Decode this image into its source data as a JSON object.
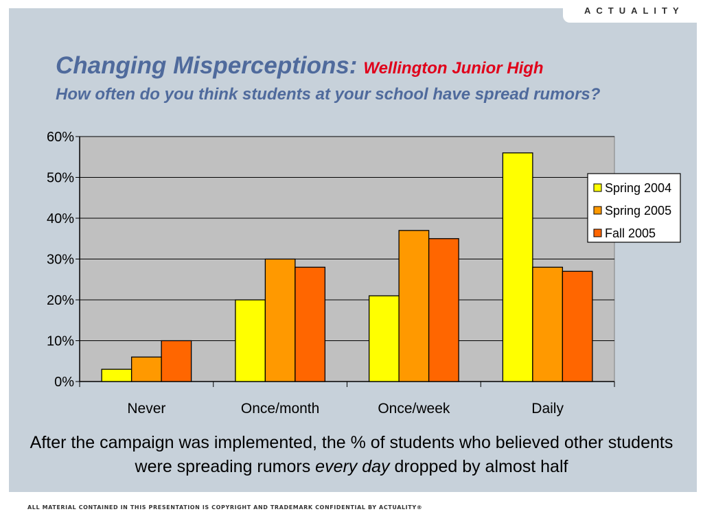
{
  "brand": "ACTUALITY",
  "title": {
    "main": "Changing Misperceptions:",
    "sub": "Wellington Junior High",
    "question": "How often do you think students at your school have spread rumors?"
  },
  "caption": {
    "before": "After the campaign was implemented, the % of students who believed other students were spreading rumors ",
    "emphasis": "every day",
    "after": " dropped by almost half"
  },
  "footer": "ALL MATERIAL CONTAINED IN THIS PRESENTATION IS COPYRIGHT AND TRADEMARK CONFIDENTIAL BY ACTUALITY®",
  "colors": {
    "plot_bg": "#c0c0c0",
    "bar_outline": "#000000",
    "series": [
      "#ffff00",
      "#ff9900",
      "#ff6600"
    ]
  },
  "chart_data": {
    "type": "bar",
    "categories": [
      "Never",
      "Once/month",
      "Once/week",
      "Daily"
    ],
    "series": [
      {
        "name": "Spring 2004",
        "values": [
          3,
          20,
          21,
          56
        ]
      },
      {
        "name": "Spring 2005",
        "values": [
          6,
          30,
          37,
          28
        ]
      },
      {
        "name": "Fall 2005",
        "values": [
          10,
          28,
          35,
          27
        ]
      }
    ],
    "ylim": [
      0,
      60
    ],
    "yticks": [
      0,
      10,
      20,
      30,
      40,
      50,
      60
    ],
    "ytick_labels": [
      "0%",
      "10%",
      "20%",
      "30%",
      "40%",
      "50%",
      "60%"
    ],
    "grid": true,
    "legend_position": "right"
  }
}
